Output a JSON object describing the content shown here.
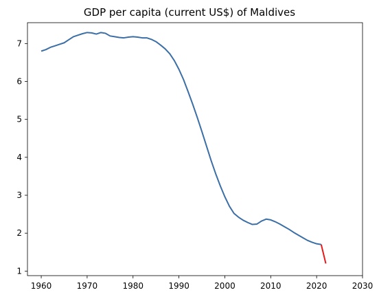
{
  "chart_data": {
    "type": "line",
    "title": "GDP per capita (current US$) of Maldives",
    "xlabel": "",
    "ylabel": "",
    "xlim": [
      1957,
      2030
    ],
    "ylim": [
      0.88,
      7.55
    ],
    "xticks": [
      1960,
      1970,
      1980,
      1990,
      2000,
      2010,
      2020,
      2030
    ],
    "yticks": [
      1,
      2,
      3,
      4,
      5,
      6,
      7
    ],
    "grid": false,
    "legend": "none",
    "series": [
      {
        "color": "#3a6ea5",
        "x": [
          1960,
          1961,
          1962,
          1963,
          1964,
          1965,
          1966,
          1967,
          1968,
          1969,
          1970,
          1971,
          1972,
          1973,
          1974,
          1975,
          1976,
          1977,
          1978,
          1979,
          1980,
          1981,
          1982,
          1983,
          1984,
          1985,
          1986,
          1987,
          1988,
          1989,
          1990,
          1991,
          1992,
          1993,
          1994,
          1995,
          1996,
          1997,
          1998,
          1999,
          2000,
          2001,
          2002,
          2003,
          2004,
          2005,
          2006,
          2007,
          2008,
          2009,
          2010,
          2011,
          2012,
          2013,
          2014,
          2015,
          2016,
          2017,
          2018,
          2019,
          2020,
          2021
        ],
        "values": [
          6.8,
          6.84,
          6.9,
          6.94,
          6.98,
          7.02,
          7.1,
          7.18,
          7.22,
          7.26,
          7.29,
          7.28,
          7.25,
          7.29,
          7.27,
          7.2,
          7.18,
          7.16,
          7.15,
          7.17,
          7.18,
          7.17,
          7.15,
          7.15,
          7.11,
          7.05,
          6.96,
          6.86,
          6.73,
          6.55,
          6.32,
          6.05,
          5.73,
          5.4,
          5.05,
          4.68,
          4.3,
          3.92,
          3.57,
          3.25,
          2.96,
          2.71,
          2.52,
          2.42,
          2.34,
          2.28,
          2.23,
          2.24,
          2.32,
          2.37,
          2.35,
          2.3,
          2.24,
          2.17,
          2.1,
          2.02,
          1.95,
          1.88,
          1.81,
          1.76,
          1.72,
          1.7
        ]
      },
      {
        "color": "#e8191a",
        "x": [
          2021,
          2022
        ],
        "values": [
          1.7,
          1.2
        ]
      }
    ]
  }
}
